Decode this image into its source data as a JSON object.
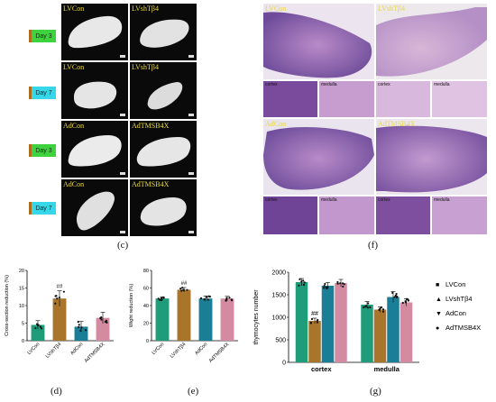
{
  "panel_c": {
    "letter": "(c)",
    "rows": [
      {
        "day": "Day 3",
        "day_color": "#3fd23f",
        "left": "LVCon",
        "right": "LVshTβ4"
      },
      {
        "day": "Day 7",
        "day_color": "#35d7e8",
        "left": "LVCon",
        "right": "LVshTβ4"
      },
      {
        "day": "Day 3",
        "day_color": "#3fd23f",
        "left": "AdCon",
        "right": "AdTMSB4X"
      },
      {
        "day": "Day 7",
        "day_color": "#35d7e8",
        "left": "AdCon",
        "right": "AdTMSB4X"
      }
    ]
  },
  "panel_f": {
    "letter": "(f)",
    "top_left": "LVCon",
    "top_right": "LVshTβ4",
    "bottom_left": "AdCon",
    "bottom_right": "AdTMSB4X",
    "sub_labels_top": [
      "cortex",
      "medulla",
      "cortex",
      "medulla"
    ],
    "sub_labels_bottom": [
      "cortex",
      "medulla",
      "cortex",
      "medulla"
    ]
  },
  "panel_d": {
    "letter": "(d)",
    "chart_data": {
      "type": "bar",
      "categories": [
        "LVCon",
        "LVshTβ4",
        "AdCon",
        "AdTMSB4X"
      ],
      "values": [
        4.5,
        12,
        4,
        6.5
      ],
      "errors": [
        1.2,
        2.2,
        1.5,
        1.6
      ],
      "colors": [
        "#1f9c7a",
        "#a8752a",
        "#1a7f96",
        "#d48aa0"
      ],
      "ylabel": "Cross-section reduction (%)",
      "ylim": [
        0,
        20
      ],
      "yticks": [
        0,
        5,
        10,
        15,
        20
      ],
      "annotations": [
        {
          "category": "LVshTβ4",
          "text": "##"
        }
      ]
    }
  },
  "panel_e": {
    "letter": "(e)",
    "chart_data": {
      "type": "bar",
      "categories": [
        "LVCon",
        "LVshTβ4",
        "AdCon",
        "AdTMSB4X"
      ],
      "values": [
        48,
        58,
        48,
        48
      ],
      "errors": [
        2,
        2.5,
        3,
        2.5
      ],
      "colors": [
        "#1f9c7a",
        "#a8752a",
        "#1a7f96",
        "#d48aa0"
      ],
      "ylabel": "Wight reduction (%)",
      "ylim": [
        0,
        80
      ],
      "yticks": [
        0,
        20,
        40,
        60,
        80
      ],
      "annotations": [
        {
          "category": "LVshTβ4",
          "text": "##"
        }
      ]
    }
  },
  "panel_g": {
    "letter": "(g)",
    "chart_data": {
      "type": "bar",
      "categories": [
        "cortex",
        "medulla"
      ],
      "series": [
        {
          "name": "LVCon",
          "values": [
            1780,
            1280
          ],
          "errors": [
            80,
            70
          ],
          "color": "#1f9c7a",
          "marker": "■"
        },
        {
          "name": "LVshTβ4",
          "values": [
            920,
            1170
          ],
          "errors": [
            60,
            60
          ],
          "color": "#a8752a",
          "marker": "▲"
        },
        {
          "name": "AdCon",
          "values": [
            1700,
            1450
          ],
          "errors": [
            70,
            120
          ],
          "color": "#1a7f96",
          "marker": "▼"
        },
        {
          "name": "AdTMSB4X",
          "values": [
            1760,
            1330
          ],
          "errors": [
            80,
            80
          ],
          "color": "#d48aa0",
          "marker": "●"
        }
      ],
      "ylabel": "thymocytes number",
      "ylim": [
        0,
        2000
      ],
      "yticks": [
        0,
        500,
        1000,
        1500,
        2000
      ],
      "annotations": [
        {
          "category": "cortex",
          "series": "LVshTβ4",
          "text": "##"
        }
      ]
    }
  }
}
